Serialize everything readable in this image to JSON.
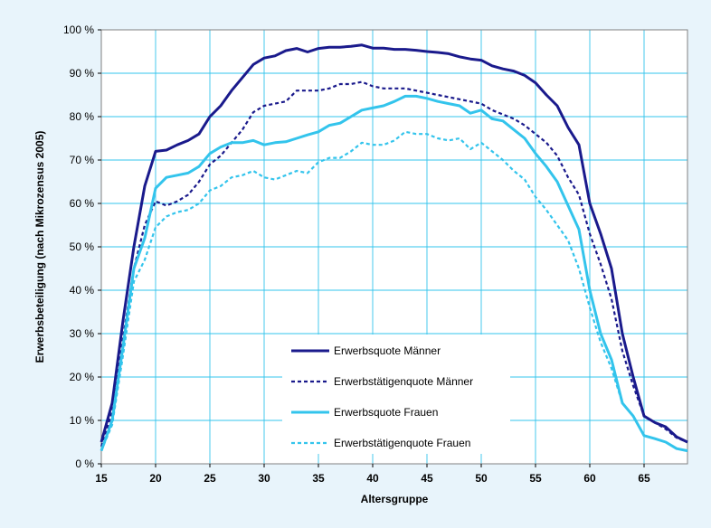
{
  "chart_data": {
    "type": "line",
    "xlabel": "Altersgruppe",
    "ylabel": "Erwerbsbeteiligung (nach Mikrozensus 2005)",
    "xlim": [
      15,
      69
    ],
    "ylim": [
      0,
      100
    ],
    "x_ticks": [
      15,
      20,
      25,
      30,
      35,
      40,
      45,
      50,
      55,
      60,
      65
    ],
    "x_tick_labels": [
      "15",
      "20",
      "25",
      "30",
      "35",
      "40",
      "45",
      "50",
      "55",
      "60",
      "65"
    ],
    "y_ticks": [
      0,
      10,
      20,
      30,
      40,
      50,
      60,
      70,
      80,
      90,
      100
    ],
    "y_tick_labels": [
      "0 %",
      "10 %",
      "20 %",
      "30 %",
      "40 %",
      "50 %",
      "60 %",
      "70 %",
      "80 %",
      "90 %",
      "100 %"
    ],
    "grid": true,
    "legend_position": "bottom-center",
    "x": [
      15,
      16,
      17,
      18,
      19,
      20,
      21,
      22,
      23,
      24,
      25,
      26,
      27,
      28,
      29,
      30,
      31,
      32,
      33,
      34,
      35,
      36,
      37,
      38,
      39,
      40,
      41,
      42,
      43,
      44,
      45,
      46,
      47,
      48,
      49,
      50,
      51,
      52,
      53,
      54,
      55,
      56,
      57,
      58,
      59,
      60,
      61,
      62,
      63,
      64,
      65,
      66,
      67,
      68,
      69
    ],
    "series": [
      {
        "name": "Erwerbsquote Männer",
        "color": "#1a1a8c",
        "dash": "solid",
        "values": [
          5,
          14,
          33,
          50,
          64,
          72,
          72.3,
          73.5,
          74.5,
          76,
          80,
          82.5,
          86,
          89,
          92,
          93.5,
          94,
          95.2,
          95.7,
          94.9,
          95.7,
          96,
          96,
          96.2,
          96.5,
          95.8,
          95.8,
          95.5,
          95.5,
          95.3,
          95,
          94.8,
          94.5,
          93.8,
          93.3,
          93,
          91.7,
          91,
          90.5,
          89.5,
          87.8,
          85,
          82.5,
          77.5,
          73.5,
          60,
          53,
          45,
          30,
          20,
          11,
          9.5,
          8.5,
          6.2,
          5
        ]
      },
      {
        "name": "Erwerbstätigenquote Männer",
        "color": "#1a1a8c",
        "dash": "dashed",
        "values": [
          4,
          12,
          29,
          45,
          55,
          60.5,
          59.5,
          60.5,
          62,
          65,
          69,
          71,
          74,
          77,
          81,
          82.5,
          83,
          83.5,
          86,
          86,
          86,
          86.5,
          87.5,
          87.5,
          88,
          87,
          86.5,
          86.5,
          86.5,
          86,
          85.5,
          85,
          84.5,
          84,
          83.5,
          83,
          81.5,
          80.5,
          79.5,
          78,
          76,
          74,
          71,
          66,
          62,
          53,
          46,
          38,
          26,
          18,
          11,
          9.5,
          8,
          6,
          5
        ]
      },
      {
        "name": "Erwerbsquote Frauen",
        "color": "#33c4ec",
        "dash": "solid",
        "values": [
          3,
          10,
          27,
          45,
          52,
          63.5,
          66,
          66.5,
          67,
          68.5,
          71.5,
          73,
          74,
          74,
          74.5,
          73.5,
          74,
          74.2,
          75,
          75.8,
          76.5,
          78,
          78.5,
          80,
          81.5,
          82,
          82.5,
          83.5,
          84.7,
          84.7,
          84.2,
          83.5,
          83,
          82.5,
          80.8,
          81.5,
          79.5,
          79,
          77,
          75,
          71.5,
          68.5,
          65,
          59.5,
          54,
          40,
          30,
          24,
          14,
          11,
          6.5,
          5.8,
          5,
          3.5,
          3
        ]
      },
      {
        "name": "Erwerbstätigenquote Frauen",
        "color": "#33c4ec",
        "dash": "dashed",
        "values": [
          3,
          9,
          25,
          42,
          47,
          54.5,
          57,
          58,
          58.5,
          60,
          63,
          64,
          66,
          66.5,
          67.5,
          66,
          65.5,
          66.5,
          67.5,
          67,
          69.5,
          70.5,
          70.5,
          72,
          74,
          73.5,
          73.5,
          74.5,
          76.5,
          76,
          76,
          75,
          74.5,
          75,
          72.5,
          74,
          72,
          70,
          67.5,
          65.5,
          61.5,
          58.5,
          55,
          51.5,
          45,
          36,
          28,
          22,
          14,
          11,
          6.5,
          5.8,
          5,
          3.5,
          3
        ]
      }
    ]
  }
}
